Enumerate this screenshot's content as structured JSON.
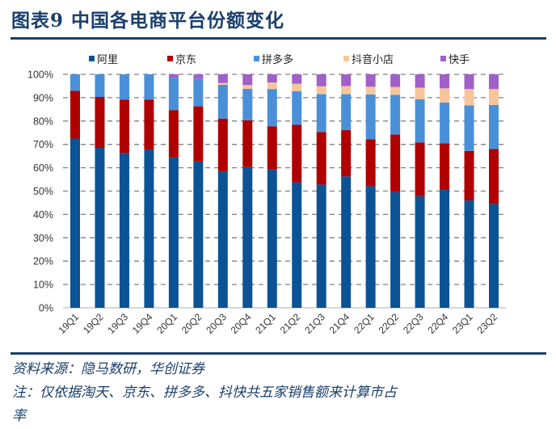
{
  "header": {
    "title": "图表9  中国各电商平台份额变化"
  },
  "footer": {
    "source": "资料来源：隐马数研，华创证券",
    "note_line1": "注：仅依据淘天、京东、拼多多、抖快共五家销售额来计算市占",
    "note_line2": "率"
  },
  "colors": {
    "accent": "#1a3f6b"
  },
  "chart_data": {
    "type": "bar",
    "stacked": true,
    "title": "中国各电商平台份额变化",
    "xlabel": "",
    "ylabel": "",
    "ylim": [
      0,
      100
    ],
    "yticks": [
      "0%",
      "10%",
      "20%",
      "30%",
      "40%",
      "50%",
      "60%",
      "70%",
      "80%",
      "90%",
      "100%"
    ],
    "grid": "horizontal-dashed",
    "legend_position": "top",
    "categories": [
      "19Q1",
      "19Q2",
      "19Q3",
      "19Q4",
      "20Q1",
      "20Q2",
      "20Q3",
      "20Q4",
      "21Q1",
      "21Q2",
      "21Q3",
      "21Q4",
      "22Q1",
      "22Q2",
      "22Q3",
      "22Q4",
      "23Q1",
      "23Q2"
    ],
    "series": [
      {
        "name": "阿里",
        "color": "#0b5394",
        "values": [
          72.5,
          68.5,
          66.3,
          67.8,
          64.5,
          62.7,
          58.5,
          60.3,
          59.3,
          53.7,
          52.8,
          56.3,
          52.1,
          49.7,
          47.8,
          50.7,
          46.0,
          44.5
        ]
      },
      {
        "name": "京东",
        "color": "#b00000",
        "values": [
          20.5,
          21.8,
          22.9,
          21.3,
          20.1,
          23.6,
          22.5,
          20.0,
          18.4,
          24.7,
          22.5,
          19.8,
          20.1,
          24.5,
          23.0,
          19.8,
          21.2,
          23.5
        ]
      },
      {
        "name": "拼多多",
        "color": "#4a90d9",
        "values": [
          7.0,
          9.7,
          10.8,
          10.9,
          14.0,
          11.7,
          14.5,
          13.5,
          16.0,
          14.4,
          16.2,
          15.4,
          19.2,
          17.0,
          18.5,
          17.4,
          19.5,
          18.9
        ]
      },
      {
        "name": "抖音小店",
        "color": "#f7c59b",
        "values": [
          0,
          0,
          0,
          0,
          0,
          0,
          0.8,
          1.6,
          2.8,
          3.2,
          3.4,
          3.5,
          3.3,
          3.4,
          5.0,
          6.1,
          7.0,
          6.8
        ]
      },
      {
        "name": "快手",
        "color": "#a05fc9",
        "values": [
          0,
          0,
          0,
          0,
          1.4,
          2.0,
          3.7,
          4.6,
          3.5,
          4.0,
          5.1,
          5.0,
          5.3,
          5.4,
          5.7,
          6.0,
          6.3,
          6.3
        ]
      }
    ]
  }
}
